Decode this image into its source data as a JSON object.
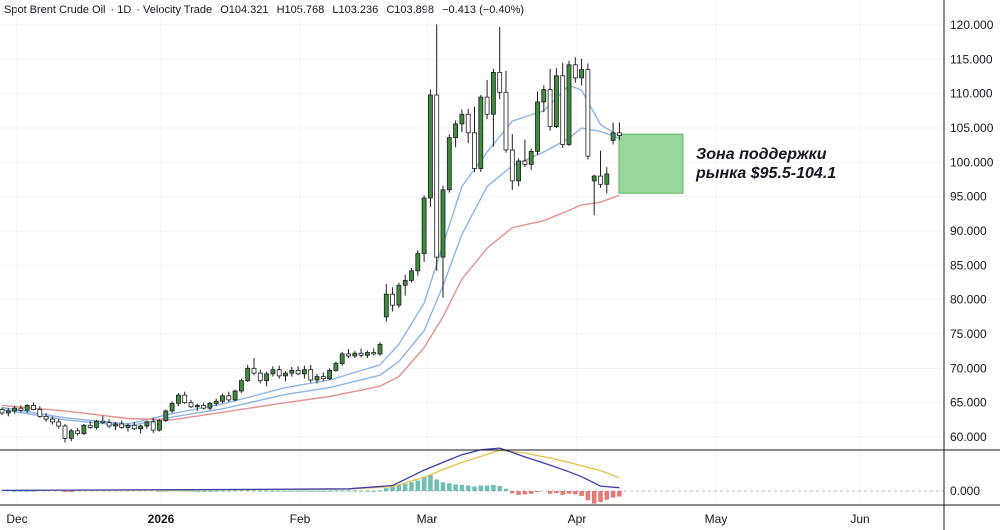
{
  "header": {
    "symbol": "Spot Brent Crude Oil",
    "interval": "1D",
    "source": "Velocity Trade",
    "open": "O104.321",
    "high": "H105.768",
    "low": "L103.236",
    "close": "C103.898",
    "change": "−0.413 (−0.40%)"
  },
  "colors": {
    "up_body": "#3d8b3d",
    "down_body": "#ffffff",
    "candle_line": "#1e1e1e",
    "ma_fast": "#8fb4e8",
    "ma_slow": "#e89090",
    "zone_fill": "#86d08a",
    "osc_line": "#3a3fb0",
    "osc_signal": "#e8c04a",
    "hist_pos": "#4caf9f",
    "hist_neg": "#e05a5a"
  },
  "chart_data": {
    "type": "candlestick",
    "y_axis": {
      "ticks": [
        "60.000",
        "65.000",
        "70.000",
        "75.000",
        "80.000",
        "85.000",
        "90.000",
        "95.000",
        "100.000",
        "105.000",
        "110.000",
        "115.000",
        "120.000"
      ],
      "ylim": [
        58,
        122
      ]
    },
    "x_axis": {
      "ticks": [
        "Dec",
        "2026",
        "Feb",
        "Mar",
        "Apr",
        "May",
        "Jun"
      ],
      "bold_ticks": [
        "2026"
      ]
    },
    "candles": [
      [
        64.0,
        64.3,
        63.2,
        63.5
      ],
      [
        63.5,
        64.2,
        63.0,
        63.8
      ],
      [
        63.8,
        64.5,
        63.4,
        64.2
      ],
      [
        64.2,
        64.6,
        63.6,
        63.9
      ],
      [
        63.9,
        64.8,
        63.5,
        64.6
      ],
      [
        64.6,
        65.0,
        63.9,
        64.0
      ],
      [
        64.0,
        64.5,
        62.8,
        63.0
      ],
      [
        63.0,
        63.5,
        62.2,
        62.6
      ],
      [
        62.6,
        63.0,
        61.8,
        62.2
      ],
      [
        62.2,
        62.6,
        61.2,
        61.6
      ],
      [
        61.6,
        61.9,
        59.2,
        59.8
      ],
      [
        59.8,
        61.2,
        59.4,
        60.9
      ],
      [
        60.9,
        61.3,
        60.2,
        60.5
      ],
      [
        60.5,
        61.9,
        60.3,
        61.7
      ],
      [
        61.7,
        62.3,
        61.2,
        61.4
      ],
      [
        61.4,
        62.5,
        61.1,
        62.3
      ],
      [
        62.3,
        63.1,
        61.9,
        62.1
      ],
      [
        62.1,
        62.6,
        61.3,
        61.6
      ],
      [
        61.6,
        62.2,
        61.0,
        61.9
      ],
      [
        61.9,
        62.4,
        61.2,
        61.4
      ],
      [
        61.4,
        62.0,
        60.8,
        61.7
      ],
      [
        61.7,
        62.2,
        61.0,
        61.2
      ],
      [
        61.2,
        61.8,
        60.5,
        61.6
      ],
      [
        61.6,
        62.4,
        61.2,
        62.2
      ],
      [
        62.2,
        62.8,
        60.6,
        61.0
      ],
      [
        61.0,
        62.6,
        60.8,
        62.4
      ],
      [
        62.4,
        64.0,
        62.2,
        63.8
      ],
      [
        63.8,
        65.2,
        63.5,
        64.9
      ],
      [
        64.9,
        66.4,
        64.5,
        66.1
      ],
      [
        66.1,
        66.6,
        64.8,
        65.0
      ],
      [
        65.0,
        65.4,
        64.2,
        64.4
      ],
      [
        64.4,
        64.9,
        63.8,
        64.6
      ],
      [
        64.6,
        65.0,
        64.0,
        64.2
      ],
      [
        64.2,
        65.1,
        63.9,
        64.9
      ],
      [
        64.9,
        65.6,
        64.5,
        65.2
      ],
      [
        65.2,
        66.3,
        64.9,
        66.0
      ],
      [
        66.0,
        66.6,
        65.1,
        65.4
      ],
      [
        65.4,
        66.9,
        65.2,
        66.7
      ],
      [
        66.7,
        68.5,
        66.4,
        68.2
      ],
      [
        68.2,
        70.5,
        68.0,
        70.0
      ],
      [
        70.0,
        71.5,
        69.0,
        69.3
      ],
      [
        69.3,
        69.8,
        67.8,
        68.2
      ],
      [
        68.2,
        69.5,
        67.4,
        69.2
      ],
      [
        69.2,
        70.3,
        68.8,
        69.8
      ],
      [
        69.8,
        70.4,
        68.5,
        68.9
      ],
      [
        68.9,
        69.6,
        68.1,
        69.3
      ],
      [
        69.3,
        70.2,
        68.8,
        69.7
      ],
      [
        69.7,
        70.3,
        69.0,
        69.2
      ],
      [
        69.2,
        70.4,
        68.5,
        69.8
      ],
      [
        69.8,
        70.5,
        67.9,
        68.3
      ],
      [
        68.3,
        69.2,
        67.8,
        68.8
      ],
      [
        68.8,
        69.4,
        68.2,
        68.5
      ],
      [
        68.5,
        70.0,
        68.3,
        69.7
      ],
      [
        69.7,
        71.0,
        69.5,
        70.7
      ],
      [
        70.7,
        72.4,
        70.4,
        72.1
      ],
      [
        72.1,
        72.8,
        71.5,
        71.8
      ],
      [
        71.8,
        72.5,
        71.5,
        72.2
      ],
      [
        72.2,
        72.9,
        71.6,
        71.9
      ],
      [
        71.9,
        72.6,
        71.5,
        72.3
      ],
      [
        72.3,
        72.9,
        71.9,
        72.1
      ],
      [
        72.1,
        73.8,
        71.8,
        73.5
      ],
      [
        77.5,
        82.3,
        76.8,
        80.8
      ],
      [
        80.8,
        81.8,
        78.3,
        79.2
      ],
      [
        79.2,
        82.5,
        78.8,
        82.1
      ],
      [
        82.1,
        83.6,
        80.6,
        82.8
      ],
      [
        82.8,
        84.6,
        82.5,
        84.2
      ],
      [
        84.2,
        87.2,
        83.5,
        86.7
      ],
      [
        86.7,
        95.2,
        85.5,
        94.8
      ],
      [
        94.8,
        110.6,
        93.5,
        109.8
      ],
      [
        109.8,
        120.1,
        84.2,
        86.2
      ],
      [
        86.2,
        96.6,
        80.3,
        96.0
      ],
      [
        96.0,
        104.1,
        95.6,
        103.6
      ],
      [
        103.6,
        106.1,
        102.2,
        105.6
      ],
      [
        105.6,
        107.7,
        104.4,
        107.0
      ],
      [
        107.0,
        107.8,
        102.8,
        104.3
      ],
      [
        104.3,
        108.1,
        98.6,
        99.1
      ],
      [
        99.1,
        109.8,
        98.6,
        109.5
      ],
      [
        109.5,
        112.0,
        106.3,
        107.0
      ],
      [
        107.0,
        113.6,
        102.3,
        113.1
      ],
      [
        113.1,
        119.7,
        109.2,
        110.2
      ],
      [
        110.2,
        113.3,
        101.4,
        101.8
      ],
      [
        101.8,
        104.1,
        96.0,
        97.3
      ],
      [
        97.3,
        100.6,
        96.5,
        100.2
      ],
      [
        100.2,
        103.3,
        99.3,
        99.7
      ],
      [
        99.7,
        102.0,
        98.9,
        101.6
      ],
      [
        101.6,
        110.3,
        101.1,
        108.8
      ],
      [
        108.8,
        111.2,
        107.3,
        110.6
      ],
      [
        110.6,
        113.6,
        104.6,
        105.2
      ],
      [
        105.2,
        113.7,
        105.0,
        112.6
      ],
      [
        112.6,
        114.5,
        102.1,
        102.6
      ],
      [
        102.6,
        114.8,
        102.4,
        114.2
      ],
      [
        114.2,
        115.3,
        111.6,
        112.3
      ],
      [
        112.3,
        115.1,
        111.2,
        113.5
      ],
      [
        113.5,
        114.4,
        100.4,
        100.9
      ],
      [
        97.3,
        98.2,
        92.3,
        98.0
      ],
      [
        98.0,
        101.7,
        96.3,
        96.8
      ],
      [
        96.8,
        99.3,
        95.5,
        98.3
      ],
      [
        103.2,
        105.8,
        102.6,
        104.3
      ],
      [
        104.3,
        105.8,
        103.2,
        103.9
      ]
    ],
    "series": [
      {
        "name": "ma_fast_1",
        "values": [
          [
            0,
            64.3
          ],
          [
            10,
            62.8
          ],
          [
            20,
            61.9
          ],
          [
            27,
            63.4
          ],
          [
            35,
            64.8
          ],
          [
            45,
            67.2
          ],
          [
            52,
            68.3
          ],
          [
            60,
            70.5
          ],
          [
            63,
            73.5
          ],
          [
            67,
            79.5
          ],
          [
            70,
            88.0
          ],
          [
            73,
            96.5
          ],
          [
            77,
            101.5
          ],
          [
            81,
            106.0
          ],
          [
            86,
            107.5
          ],
          [
            90,
            111.2
          ],
          [
            92,
            110.5
          ],
          [
            95,
            105.5
          ],
          [
            98,
            103.8
          ]
        ]
      },
      {
        "name": "ma_fast_2",
        "values": [
          [
            0,
            64.0
          ],
          [
            10,
            62.5
          ],
          [
            20,
            61.6
          ],
          [
            27,
            62.9
          ],
          [
            35,
            64.1
          ],
          [
            45,
            66.2
          ],
          [
            52,
            67.2
          ],
          [
            60,
            69.0
          ],
          [
            63,
            71.0
          ],
          [
            67,
            75.5
          ],
          [
            70,
            82.0
          ],
          [
            73,
            89.5
          ],
          [
            77,
            96.5
          ],
          [
            81,
            99.5
          ],
          [
            86,
            101.5
          ],
          [
            90,
            103.5
          ],
          [
            92,
            105.0
          ],
          [
            95,
            104.5
          ],
          [
            98,
            103.5
          ]
        ]
      },
      {
        "name": "ma_slow",
        "values": [
          [
            0,
            64.6
          ],
          [
            10,
            63.8
          ],
          [
            20,
            62.7
          ],
          [
            27,
            62.5
          ],
          [
            35,
            63.6
          ],
          [
            45,
            65.0
          ],
          [
            52,
            65.9
          ],
          [
            60,
            67.4
          ],
          [
            63,
            68.8
          ],
          [
            67,
            73.0
          ],
          [
            70,
            77.5
          ],
          [
            73,
            83.0
          ],
          [
            77,
            87.5
          ],
          [
            81,
            90.5
          ],
          [
            86,
            91.5
          ],
          [
            90,
            93.0
          ],
          [
            92,
            93.8
          ],
          [
            95,
            94.2
          ],
          [
            98,
            95.2
          ]
        ]
      }
    ],
    "support_zone": {
      "low": 95.5,
      "high": 104.1,
      "label_line1": "Зона поддержки",
      "label_line2": "рынка $95.5-104.1"
    },
    "oscillator": {
      "zero_label": "0.000",
      "line": [
        [
          0,
          0.1
        ],
        [
          20,
          0.2
        ],
        [
          40,
          0.3
        ],
        [
          55,
          0.4
        ],
        [
          62,
          1.0
        ],
        [
          67,
          3.8
        ],
        [
          70,
          5.2
        ],
        [
          73,
          6.6
        ],
        [
          76,
          7.5
        ],
        [
          79,
          7.8
        ],
        [
          83,
          6.2
        ],
        [
          87,
          4.7
        ],
        [
          90,
          3.5
        ],
        [
          92,
          2.6
        ],
        [
          95,
          0.9
        ],
        [
          98,
          0.6
        ]
      ],
      "signal": [
        [
          0,
          0.1
        ],
        [
          20,
          0.15
        ],
        [
          40,
          0.25
        ],
        [
          55,
          0.35
        ],
        [
          62,
          0.8
        ],
        [
          67,
          2.5
        ],
        [
          70,
          3.9
        ],
        [
          73,
          5.2
        ],
        [
          76,
          6.3
        ],
        [
          79,
          7.4
        ],
        [
          83,
          6.9
        ],
        [
          87,
          6.0
        ],
        [
          90,
          5.2
        ],
        [
          92,
          4.6
        ],
        [
          95,
          3.7
        ],
        [
          98,
          2.4
        ]
      ],
      "histogram": [
        0,
        0,
        0.05,
        0.05,
        0.05,
        0.05,
        0,
        0,
        0,
        0,
        -0.05,
        -0.05,
        0,
        0,
        0,
        0,
        0,
        0,
        0,
        0,
        0,
        0,
        0,
        0,
        0,
        0.05,
        0.1,
        0.15,
        0.15,
        0.1,
        0.1,
        0.05,
        0.05,
        0.05,
        0.05,
        0.1,
        0.1,
        0.15,
        0.2,
        0.2,
        0.15,
        0.1,
        0.1,
        0.05,
        0.05,
        0.05,
        0.05,
        0.05,
        0.1,
        0.05,
        0.05,
        0.05,
        0.05,
        0.1,
        0.1,
        0.1,
        0.1,
        0.1,
        0.05,
        0.05,
        0.1,
        0.5,
        0.8,
        1.1,
        1.3,
        1.6,
        1.9,
        2.6,
        2.9,
        2.1,
        1.6,
        1.4,
        1.2,
        1.1,
        1.0,
        0.8,
        1.0,
        1.0,
        1.1,
        0.9,
        0.4,
        -0.4,
        -0.7,
        -0.6,
        -0.5,
        -0.2,
        0,
        -0.5,
        -0.4,
        -0.7,
        -0.5,
        -0.6,
        -0.9,
        -1.7,
        -2.3,
        -2.0,
        -1.6,
        -1.2,
        -1.0
      ]
    }
  }
}
